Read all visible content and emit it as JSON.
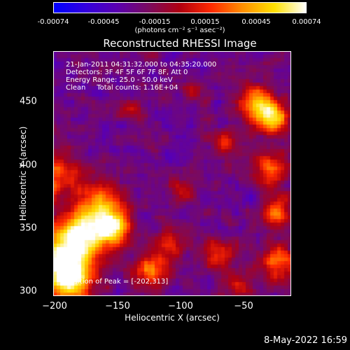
{
  "colorbar": {
    "ticks": [
      "-0.00074",
      "-0.00045",
      "-0.00015",
      "0.00015",
      "0.00045",
      "0.00074"
    ],
    "unit": "(photons cm⁻² s⁻¹ asec⁻²)",
    "colormap": [
      "#0000ff",
      "#3300dd",
      "#5a00b0",
      "#7a0a60",
      "#b00010",
      "#ff2a00",
      "#ff9000",
      "#ffe000",
      "#ffffff"
    ]
  },
  "chart_data": {
    "type": "heatmap",
    "title": "Reconstructed RHESSI Image",
    "xlabel": "Heliocentric X (arcsec)",
    "ylabel": "Heliocentric Y (arcsec)",
    "x_ticks": [
      "−200",
      "−150",
      "−100",
      "−50"
    ],
    "y_ticks": [
      "450",
      "400",
      "350",
      "300"
    ],
    "xlim": [
      -202,
      -13
    ],
    "ylim": [
      297,
      494
    ],
    "zlim": [
      -0.00074,
      0.00074
    ],
    "peak_position": [
      -202,
      313
    ],
    "hot_regions": [
      {
        "x": -196,
        "y": 322,
        "level": 1.0,
        "radius": 22
      },
      {
        "x": -180,
        "y": 345,
        "level": 0.9,
        "radius": 20
      },
      {
        "x": -155,
        "y": 352,
        "level": 0.85,
        "radius": 14
      },
      {
        "x": -165,
        "y": 372,
        "level": 0.65,
        "radius": 18
      },
      {
        "x": -200,
        "y": 395,
        "level": 0.55,
        "radius": 18
      },
      {
        "x": -185,
        "y": 305,
        "level": 0.55,
        "radius": 14
      },
      {
        "x": -125,
        "y": 318,
        "level": 0.6,
        "radius": 14
      },
      {
        "x": -110,
        "y": 340,
        "level": 0.45,
        "radius": 12
      },
      {
        "x": -40,
        "y": 452,
        "level": 0.7,
        "radius": 14
      },
      {
        "x": -28,
        "y": 440,
        "level": 0.8,
        "radius": 12
      },
      {
        "x": -30,
        "y": 400,
        "level": 0.6,
        "radius": 13
      },
      {
        "x": -25,
        "y": 365,
        "level": 0.55,
        "radius": 12
      },
      {
        "x": -22,
        "y": 325,
        "level": 0.6,
        "radius": 14
      },
      {
        "x": -70,
        "y": 330,
        "level": 0.45,
        "radius": 12
      },
      {
        "x": -65,
        "y": 420,
        "level": 0.35,
        "radius": 10
      },
      {
        "x": -90,
        "y": 460,
        "level": 0.3,
        "radius": 10
      },
      {
        "x": -140,
        "y": 445,
        "level": 0.3,
        "radius": 9
      },
      {
        "x": -100,
        "y": 385,
        "level": 0.3,
        "radius": 10
      },
      {
        "x": -55,
        "y": 305,
        "level": 0.35,
        "radius": 12
      }
    ]
  },
  "info": {
    "line1": "21-Jan-2011 04:31:32.000 to 04:35:20.000",
    "line2": "Detectors: 3F 4F 5F 6F 7F 8F, Att 0",
    "line3": "Energy Range: 25.0 - 50.0 keV",
    "line4": "Clean     Total counts: 1.16E+04"
  },
  "peak_label": "Position of Peak = [-202,313]",
  "timestamp": "8-May-2022 16:59"
}
